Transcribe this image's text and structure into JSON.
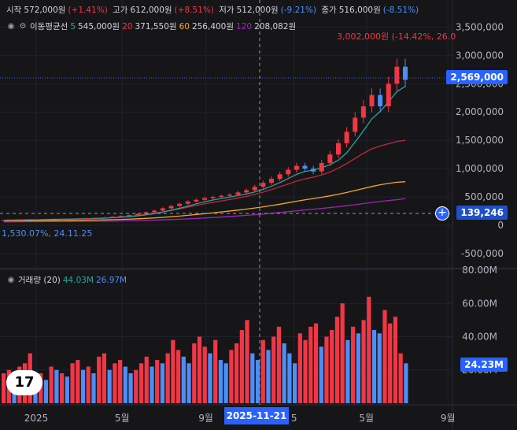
{
  "legend": {
    "open_label": "시작",
    "open_value": "572,000원",
    "open_change": "(+1.41%)",
    "high_label": "고가",
    "high_value": "612,000원",
    "high_change": "(+8.51%)",
    "low_label": "저가",
    "low_value": "512,000원",
    "low_change": "(-9.21%)",
    "close_label": "종가",
    "close_value": "516,000원",
    "close_change": "(-8.51%)",
    "ma_label": "이동평균선",
    "ma": [
      {
        "period": "5",
        "value": "545,000원",
        "color": "#26a69a"
      },
      {
        "period": "20",
        "value": "371,550원",
        "color": "#f23645"
      },
      {
        "period": "60",
        "value": "256,400원",
        "color": "#f5a623"
      },
      {
        "period": "120",
        "value": "208,082원",
        "color": "#9c27b0"
      }
    ],
    "volume_label": "거래량 (20)",
    "volume_value_1": "44.03M",
    "volume_value_2": "26.97M"
  },
  "annotations": {
    "high": "3,002,000원 (-14.42%, 26.0",
    "low": "1,530.07%, 24.11.25"
  },
  "price_tags": {
    "last": "2,569,000",
    "crosshair": "139,246",
    "volume": "24.23M"
  },
  "crosshair_date": "2025-11-21",
  "logo_text": "17",
  "colors": {
    "up": "#f23645",
    "down": "#4d8ef7",
    "accent": "#2962ff"
  },
  "chart_data": [
    {
      "type": "candlestick",
      "y_ticks": [
        "3,500,000",
        "3,000,000",
        "2,500,000",
        "2,000,000",
        "1,500,000",
        "1,000,000",
        "500,000",
        "0",
        "-500,000"
      ],
      "y_tick_values": [
        3500000,
        3000000,
        2500000,
        2000000,
        1500000,
        1000000,
        500000,
        0,
        -500000
      ],
      "ylim": [
        -750000,
        3700000
      ],
      "x_ticks": [
        {
          "label": "2025",
          "pos": 0.08
        },
        {
          "label": "5월",
          "pos": 0.27
        },
        {
          "label": "9월",
          "pos": 0.455
        },
        {
          "label": "5",
          "pos": 0.65
        },
        {
          "label": "5월",
          "pos": 0.81
        },
        {
          "label": "9월",
          "pos": 0.99
        }
      ],
      "close_series_approx": [
        90000,
        95000,
        100000,
        98000,
        105000,
        110000,
        108000,
        112000,
        115000,
        120000,
        125000,
        130000,
        140000,
        150000,
        165000,
        180000,
        200000,
        230000,
        260000,
        300000,
        340000,
        380000,
        420000,
        450000,
        480000,
        500000,
        520000,
        540000,
        580000,
        620000,
        680000,
        750000,
        820000,
        900000,
        980000,
        1050000,
        1000000,
        950000,
        1100000,
        1250000,
        1450000,
        1650000,
        1900000,
        2100000,
        2300000,
        2100000,
        2500000,
        2800000,
        2569000
      ],
      "ma_series_approx": {
        "20": [
          80000,
          85000,
          90000,
          92000,
          95000,
          98000,
          100000,
          103000,
          106000,
          110000,
          115000,
          120000,
          128000,
          136000,
          146000,
          158000,
          172000,
          190000,
          210000,
          235000,
          262000,
          290000,
          320000,
          350000,
          380000,
          405000,
          430000,
          455000,
          480000,
          510000,
          545000,
          585000,
          630000,
          680000,
          730000,
          780000,
          820000,
          850000,
          890000,
          940000,
          1010000,
          1090000,
          1180000,
          1270000,
          1350000,
          1400000,
          1440000,
          1480000,
          1500000
        ],
        "60": [
          70000,
          72000,
          74000,
          76000,
          78000,
          80000,
          82000,
          84000,
          86000,
          88000,
          90000,
          93000,
          96000,
          100000,
          104000,
          109000,
          115000,
          122000,
          130000,
          140000,
          151000,
          163000,
          176000,
          190000,
          205000,
          220000,
          236000,
          252000,
          268000,
          286000,
          305000,
          326000,
          348000,
          372000,
          398000,
          425000,
          450000,
          472000,
          495000,
          520000,
          548000,
          580000,
          615000,
          650000,
          685000,
          715000,
          740000,
          760000,
          770000
        ],
        "120": [
          60000,
          61000,
          62000,
          63000,
          64000,
          65000,
          66000,
          67000,
          68000,
          69000,
          70000,
          71000,
          73000,
          75000,
          77000,
          80000,
          83000,
          87000,
          91000,
          96000,
          101000,
          107000,
          114000,
          121000,
          129000,
          137000,
          146000,
          155000,
          165000,
          176000,
          187000,
          199000,
          212000,
          226000,
          240000,
          255000,
          270000,
          284000,
          298000,
          313000,
          329000,
          346000,
          364000,
          383000,
          402000,
          420000,
          437000,
          452000,
          470000
        ]
      }
    },
    {
      "type": "bar",
      "name": "volume",
      "y_ticks": [
        "80.00M",
        "60.00M",
        "40.00M",
        "20.00M"
      ],
      "y_tick_values": [
        80,
        60,
        40,
        20
      ],
      "ylim": [
        0,
        80
      ],
      "values_millions": [
        18,
        20,
        12,
        22,
        24,
        30,
        15,
        18,
        14,
        22,
        20,
        18,
        16,
        24,
        26,
        20,
        22,
        18,
        28,
        30,
        20,
        24,
        26,
        22,
        18,
        20,
        24,
        28,
        22,
        26,
        24,
        30,
        38,
        32,
        28,
        24,
        36,
        40,
        34,
        30,
        38,
        26,
        24,
        32,
        36,
        44,
        50,
        30,
        26,
        38,
        32,
        40,
        46,
        36,
        30,
        24,
        42,
        38,
        46,
        48,
        34,
        40,
        44,
        52,
        60,
        38,
        46,
        42,
        50,
        64,
        44,
        42,
        56,
        48,
        52,
        30,
        24
      ],
      "up_flags": [
        1,
        1,
        0,
        1,
        1,
        1,
        0,
        1,
        0,
        1,
        0,
        1,
        0,
        1,
        1,
        0,
        1,
        0,
        1,
        1,
        0,
        1,
        1,
        0,
        0,
        1,
        1,
        1,
        0,
        1,
        0,
        1,
        1,
        1,
        0,
        0,
        1,
        1,
        1,
        0,
        1,
        0,
        0,
        1,
        1,
        1,
        1,
        0,
        0,
        1,
        0,
        1,
        1,
        0,
        0,
        0,
        1,
        1,
        1,
        1,
        0,
        1,
        1,
        1,
        1,
        0,
        1,
        0,
        1,
        1,
        0,
        0,
        1,
        1,
        1,
        1,
        0
      ]
    }
  ]
}
